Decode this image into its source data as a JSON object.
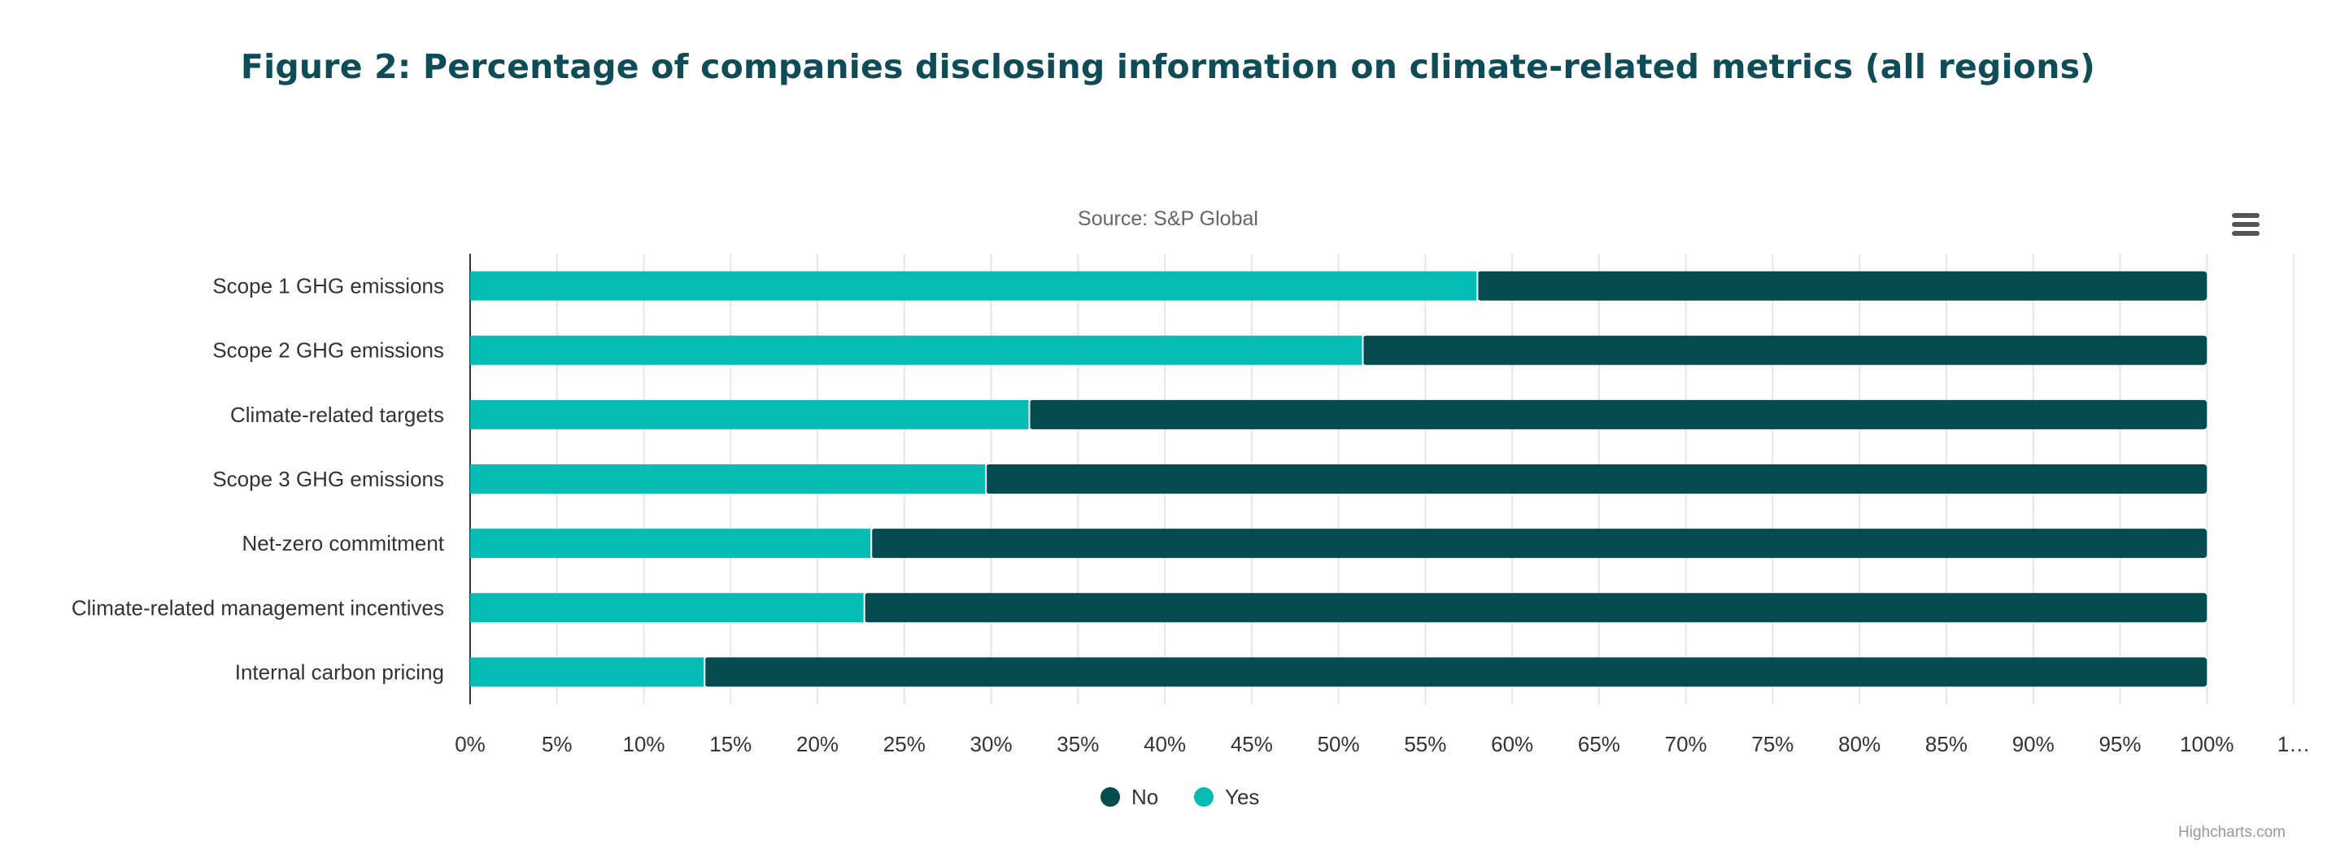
{
  "title": "Figure 2: Percentage of companies disclosing information on climate-related metrics (all regions)",
  "subtitle": "Source: S&P Global",
  "menu_icon": "hamburger-menu-icon",
  "credit": "Highcharts.com",
  "colors": {
    "yes": "#06bdb5",
    "no": "#054b50",
    "title": "#0e4d57"
  },
  "chart_data": {
    "type": "bar",
    "stacking": "percent",
    "orientation": "horizontal",
    "title": "Figure 2: Percentage of companies disclosing information on climate-related metrics (all regions)",
    "subtitle": "Source: S&P Global",
    "categories": [
      "Scope 1 GHG emissions",
      "Scope 2 GHG emissions",
      "Climate-related targets",
      "Scope 3 GHG emissions",
      "Net-zero commitment",
      "Climate-related management incentives",
      "Internal carbon pricing"
    ],
    "series": [
      {
        "name": "Yes",
        "color": "#06bdb5",
        "values": [
          58,
          51.4,
          32.2,
          29.7,
          23.1,
          22.7,
          13.5
        ]
      },
      {
        "name": "No",
        "color": "#054b50",
        "values": [
          42,
          48.6,
          67.8,
          70.3,
          76.9,
          77.3,
          86.5
        ]
      }
    ],
    "xlim": [
      0,
      105
    ],
    "tick_labels": [
      "0%",
      "5%",
      "10%",
      "15%",
      "20%",
      "25%",
      "30%",
      "35%",
      "40%",
      "45%",
      "50%",
      "55%",
      "60%",
      "65%",
      "70%",
      "75%",
      "80%",
      "85%",
      "90%",
      "95%",
      "100%",
      "1…"
    ],
    "grid": true,
    "legend": {
      "position": "bottom-center",
      "items": [
        "No",
        "Yes"
      ]
    }
  }
}
